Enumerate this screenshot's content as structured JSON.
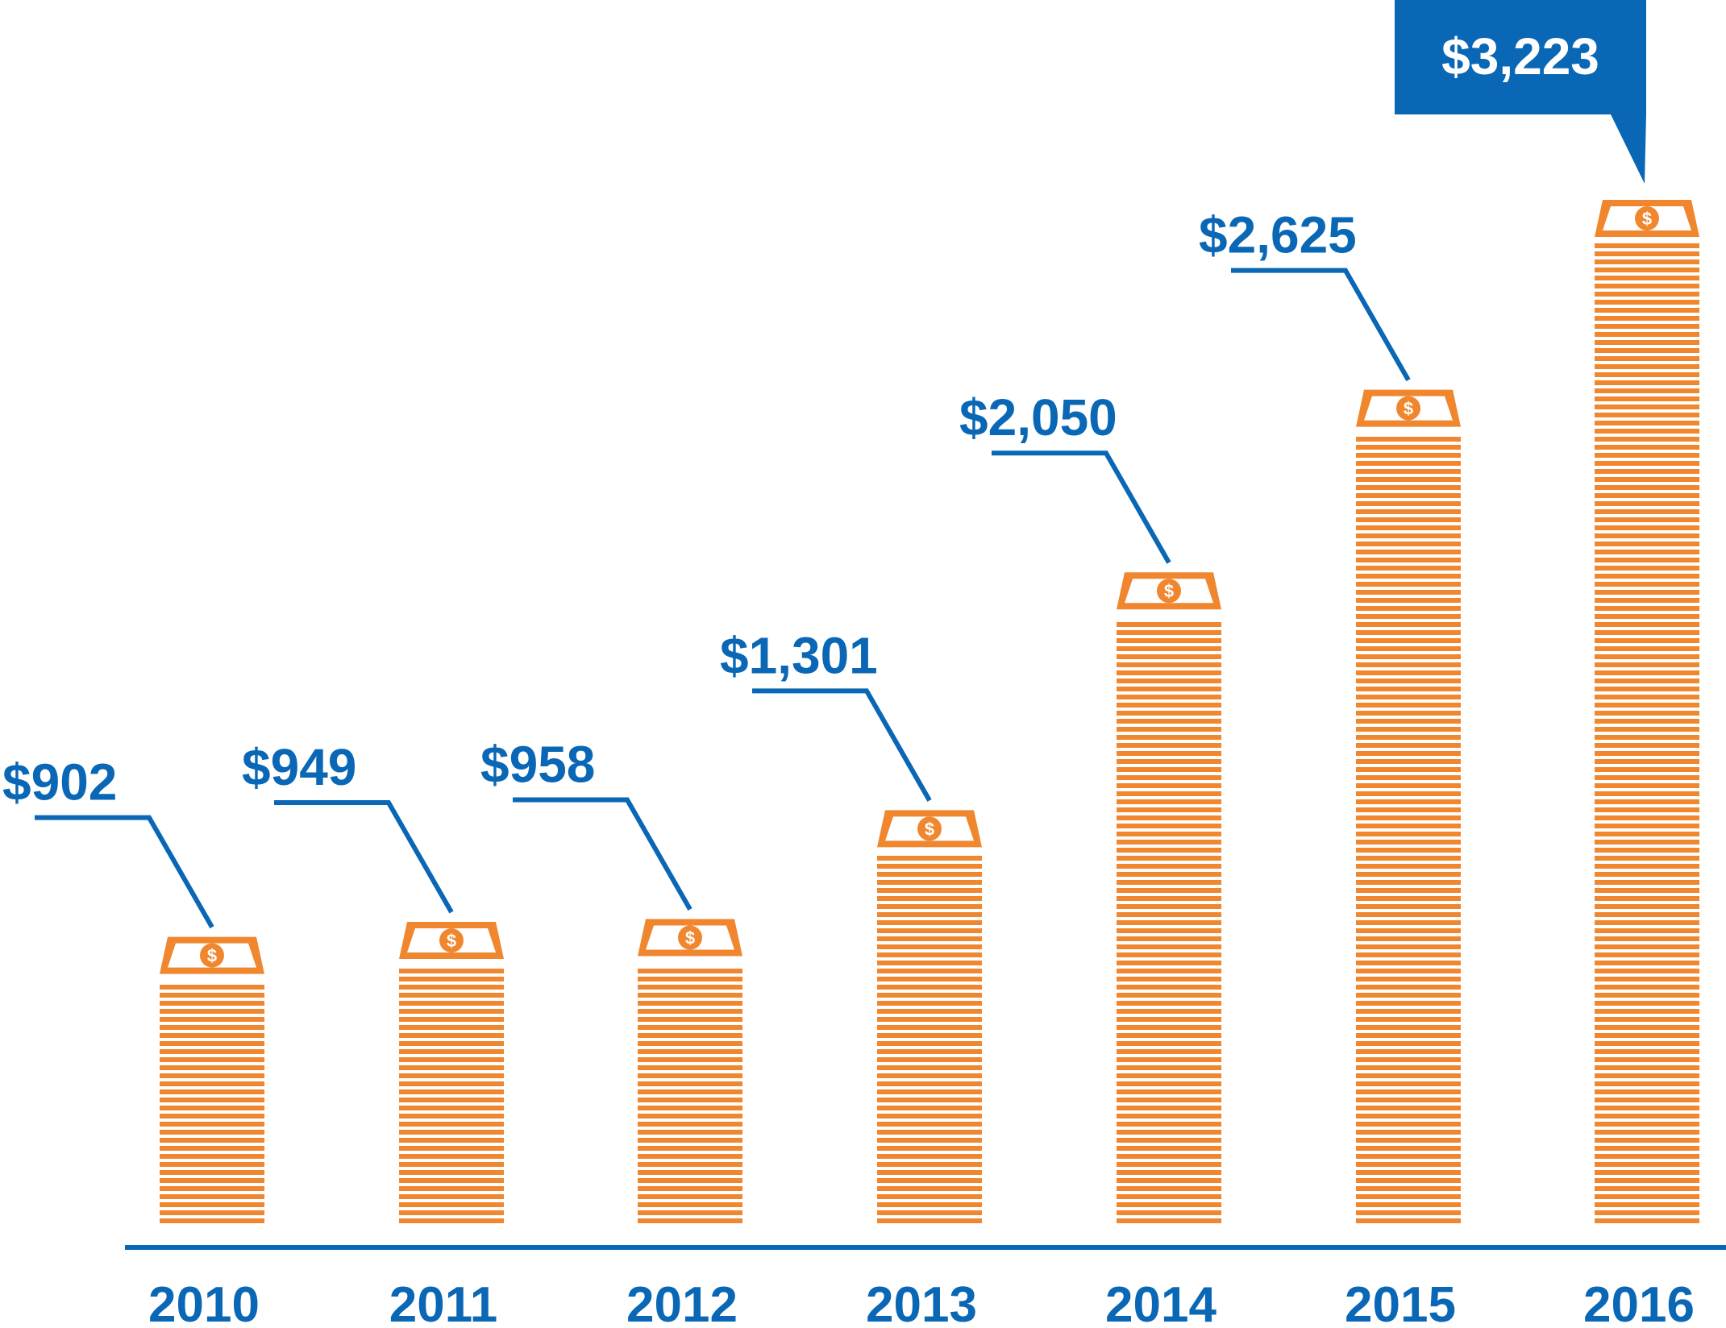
{
  "chart_data": {
    "type": "bar",
    "title": "",
    "xlabel": "",
    "ylabel": "",
    "categories": [
      "2010",
      "2011",
      "2012",
      "2013",
      "2014",
      "2015",
      "2016"
    ],
    "values": [
      902,
      949,
      958,
      1301,
      2050,
      2625,
      3223
    ],
    "value_labels": [
      "$902",
      "$949",
      "$958",
      "$1,301",
      "$2,050",
      "$2,625",
      "$3,223"
    ],
    "highlight_index": 6,
    "ylim": [
      0,
      3223
    ],
    "grid": false,
    "legend": "none",
    "bar_style": "stack-of-money",
    "colors": {
      "bar": "#F0862E",
      "label": "#0A67B5",
      "axis": "#0A67B5",
      "callout_bg": "#0A67B5",
      "callout_text": "#FFFFFF",
      "bill_face": "#FFFFFF"
    }
  }
}
